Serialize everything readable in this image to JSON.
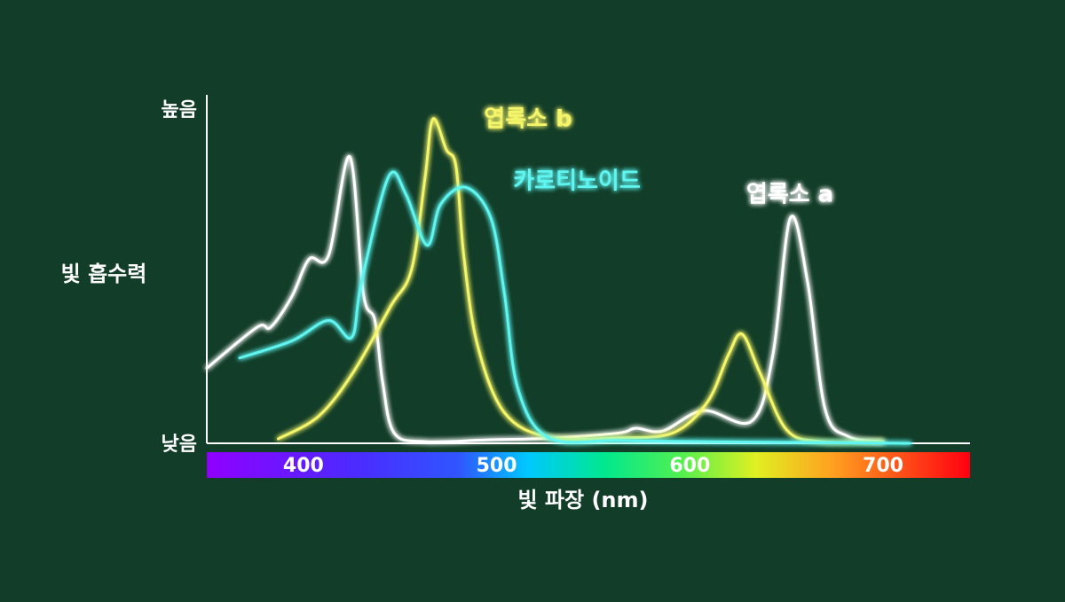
{
  "chart_data": {
    "type": "line",
    "x_label": "빛 파장 (nm)",
    "y_label": "빛 흡수력",
    "xlim": [
      350,
      745
    ],
    "xticks": [
      400,
      500,
      600,
      700
    ],
    "ylim": [
      0,
      100
    ],
    "yticks": [
      {
        "value": 0,
        "label": "낮음"
      },
      {
        "value": 100,
        "label": "높음"
      }
    ],
    "grid": false,
    "series": [
      {
        "name": "엽록소 a",
        "color": "#ffffff",
        "x": [
          350,
          376,
          383,
          394,
          403,
          413,
          424,
          431,
          437,
          441,
          447,
          463,
          495,
          527,
          563,
          572,
          586,
          607,
          632,
          643,
          652,
          661,
          670,
          682,
          700
        ],
        "values": [
          22,
          34,
          34,
          43,
          54,
          55,
          84,
          44,
          36,
          18,
          3,
          0.5,
          1,
          1.5,
          3,
          4.4,
          3.6,
          9.6,
          6.5,
          26,
          66,
          47,
          10,
          2,
          0.5
        ]
      },
      {
        "name": "엽록소 b",
        "color": "#f5f56a",
        "x": [
          387,
          408,
          426,
          445,
          456,
          463,
          467,
          474,
          479,
          483,
          490,
          504,
          527,
          563,
          591,
          609,
          620,
          627,
          636,
          650,
          668,
          700
        ],
        "values": [
          1.3,
          8,
          21,
          40,
          51,
          78,
          95,
          86,
          81,
          55,
          29,
          9,
          1.8,
          1.6,
          3,
          12,
          26,
          32,
          21,
          4,
          0.5,
          0.5
        ]
      },
      {
        "name": "카로티노이드",
        "color": "#5ff5f0",
        "x": [
          367,
          394,
          413,
          425,
          430,
          444,
          453,
          464,
          471,
          484,
          497,
          504,
          511,
          527,
          563,
          609,
          714
        ],
        "values": [
          25,
          30,
          36,
          31,
          47,
          78,
          73,
          58,
          70,
          75,
          66,
          44,
          16,
          1.6,
          0.8,
          0.5,
          0
        ]
      }
    ]
  }
}
